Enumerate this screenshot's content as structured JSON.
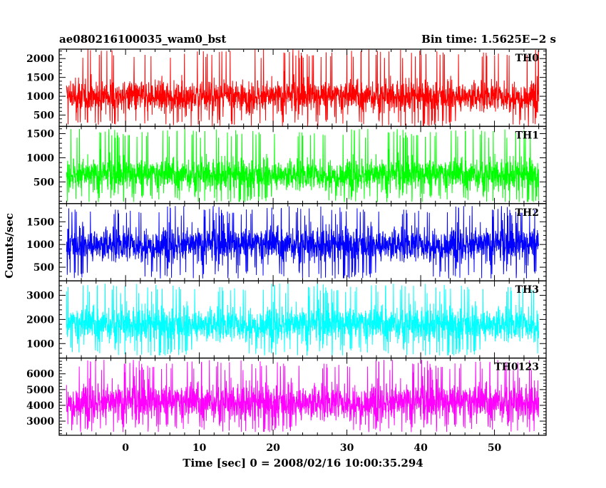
{
  "header": {
    "title": "ae080216100035_wam0_bst",
    "bin_time": "Bin time: 1.5625E−2 s"
  },
  "axes": {
    "xlabel": "Time [sec] 0 = 2008/02/16 10:00:35.294",
    "ylabel": "Counts/sec"
  },
  "chart_data": {
    "type": "line",
    "title": "ae080216100035_wam0_bst",
    "xlabel": "Time [sec] 0 = 2008/02/16 10:00:35.294",
    "ylabel": "Counts/sec",
    "xlim": [
      -9,
      57
    ],
    "x_range": [
      -8,
      56
    ],
    "x_ticks": [
      0,
      10,
      20,
      30,
      40,
      50
    ],
    "bin_time_s": 0.015625,
    "panels": [
      {
        "name": "TH0",
        "color": "#ff0000",
        "ylim": [
          200,
          2250
        ],
        "y_ticks": [
          500,
          1000,
          1500,
          2000
        ],
        "mean": 1000,
        "typical_range": [
          500,
          1700
        ],
        "extremes": [
          200,
          2250
        ]
      },
      {
        "name": "TH1",
        "color": "#00ff00",
        "ylim": [
          50,
          1650
        ],
        "y_ticks": [
          500,
          1000,
          1500
        ],
        "mean": 650,
        "typical_range": [
          250,
          1200
        ],
        "extremes": [
          80,
          1600
        ]
      },
      {
        "name": "TH2",
        "color": "#0000ff",
        "ylim": [
          200,
          1900
        ],
        "y_ticks": [
          500,
          1000,
          1500
        ],
        "mean": 1000,
        "typical_range": [
          500,
          1600
        ],
        "extremes": [
          250,
          1850
        ]
      },
      {
        "name": "TH3",
        "color": "#00ffff",
        "ylim": [
          400,
          3600
        ],
        "y_ticks": [
          1000,
          2000,
          3000
        ],
        "mean": 1800,
        "typical_range": [
          900,
          3000
        ],
        "extremes": [
          500,
          3500
        ]
      },
      {
        "name": "TH0123",
        "color": "#ff00ff",
        "ylim": [
          2100,
          7000
        ],
        "y_ticks": [
          3000,
          4000,
          5000,
          6000
        ],
        "mean": 4200,
        "typical_range": [
          2800,
          6200
        ],
        "extremes": [
          2300,
          6900
        ]
      }
    ]
  }
}
